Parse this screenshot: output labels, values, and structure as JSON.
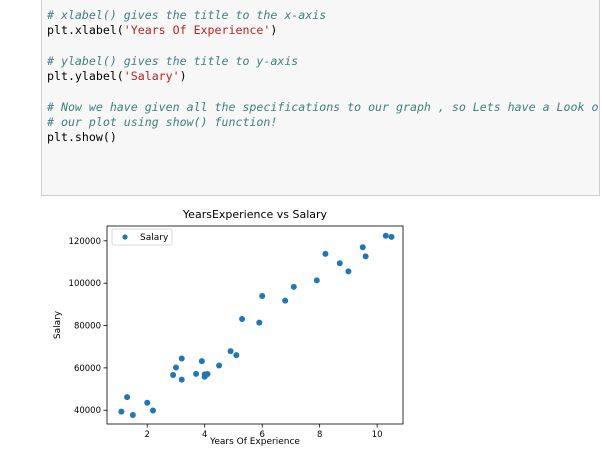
{
  "code_cell": {
    "lines": [
      [
        {
          "t": "# xlabel() gives the title to the x-axis",
          "c": "cm"
        }
      ],
      [
        {
          "t": "plt.xlabel(",
          "c": ""
        },
        {
          "t": "'Years Of Experience'",
          "c": "str"
        },
        {
          "t": ")",
          "c": ""
        }
      ],
      [],
      [
        {
          "t": "# ylabel() gives the title to y-axis",
          "c": "cm"
        }
      ],
      [
        {
          "t": "plt.ylabel(",
          "c": ""
        },
        {
          "t": "'Salary'",
          "c": "str"
        },
        {
          "t": ")",
          "c": ""
        }
      ],
      [],
      [
        {
          "t": "# Now we have given all the specifications to our graph , so Lets have a Look on",
          "c": "cm"
        }
      ],
      [
        {
          "t": "# our plot using show() function!",
          "c": "cm"
        }
      ],
      [
        {
          "t": "plt.show()",
          "c": ""
        }
      ]
    ]
  },
  "chart_data": {
    "type": "scatter",
    "title": "YearsExperience vs Salary",
    "xlabel": "Years Of Experience",
    "ylabel": "Salary",
    "xlim": [
      0.6,
      10.9
    ],
    "ylim": [
      33500,
      127000
    ],
    "xticks": [
      2,
      4,
      6,
      8,
      10
    ],
    "yticks": [
      40000,
      60000,
      80000,
      100000,
      120000
    ],
    "grid": false,
    "legend_position": "top-left",
    "marker_color": "#1f77b4",
    "series": [
      {
        "name": "Salary",
        "points": [
          [
            1.1,
            39343
          ],
          [
            1.3,
            46205
          ],
          [
            1.5,
            37731
          ],
          [
            2.0,
            43525
          ],
          [
            2.2,
            39891
          ],
          [
            2.9,
            56642
          ],
          [
            3.0,
            60150
          ],
          [
            3.2,
            54445
          ],
          [
            3.2,
            64445
          ],
          [
            3.7,
            57189
          ],
          [
            3.9,
            63218
          ],
          [
            4.0,
            55794
          ],
          [
            4.0,
            56957
          ],
          [
            4.1,
            57081
          ],
          [
            4.5,
            61111
          ],
          [
            4.9,
            67938
          ],
          [
            5.1,
            66029
          ],
          [
            5.3,
            83088
          ],
          [
            5.9,
            81363
          ],
          [
            6.0,
            93940
          ],
          [
            6.8,
            91738
          ],
          [
            7.1,
            98273
          ],
          [
            7.9,
            101302
          ],
          [
            8.2,
            113812
          ],
          [
            8.7,
            109431
          ],
          [
            9.0,
            105582
          ],
          [
            9.5,
            116969
          ],
          [
            9.6,
            112635
          ],
          [
            10.3,
            122391
          ],
          [
            10.5,
            121872
          ]
        ]
      }
    ]
  }
}
